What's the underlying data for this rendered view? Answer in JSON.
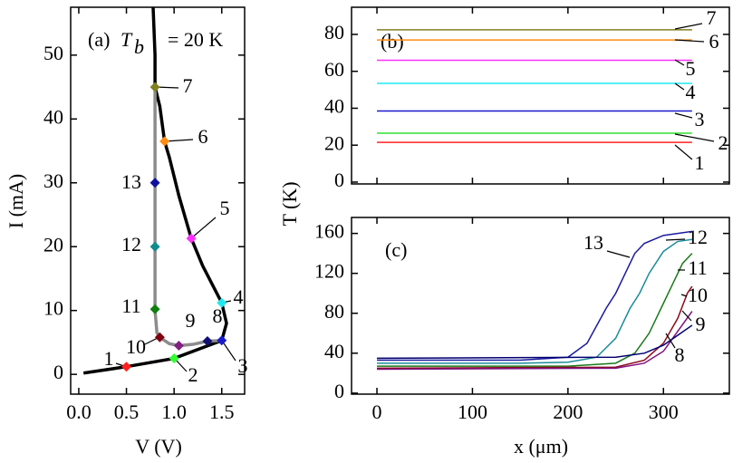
{
  "chart_data": [
    {
      "type": "line",
      "panel_label": "(a)",
      "annotation": {
        "symbol": "T",
        "subscript": "b",
        "text": "= 20 K"
      },
      "xlabel": "V (V)",
      "ylabel": "I (mA)",
      "xlim": [
        -0.085,
        1.74
      ],
      "ylim": [
        -3.1,
        57.5
      ],
      "xticks": [
        {
          "value": 0,
          "label": "0.0"
        },
        0.5,
        {
          "value": 1,
          "label": "1.0"
        },
        1.5
      ],
      "yticks": [
        0,
        10,
        20,
        30,
        40,
        50
      ],
      "series": [
        {
          "color": "#000000",
          "x": [
            0.05,
            0.5,
            1.0,
            1.5,
            1.55,
            1.5,
            1.3,
            1.18,
            1.05,
            0.95,
            0.9,
            0.85,
            0.8,
            0.8,
            0.78
          ],
          "values": [
            0.2,
            1.2,
            2.5,
            5.3,
            8,
            11.2,
            17,
            21.3,
            28,
            34,
            36.5,
            42,
            45,
            50,
            57.5
          ]
        },
        {
          "color": "#8c8c8c",
          "x": [
            0.8,
            0.8,
            0.8,
            0.82,
            0.85,
            0.95,
            1.05,
            1.2,
            1.35,
            1.5
          ],
          "values": [
            45,
            20,
            10,
            6.5,
            5.8,
            4.8,
            4.5,
            4.7,
            5.2,
            5.3
          ]
        }
      ],
      "points": {
        "labels": [
          "1",
          "2",
          "3",
          "4",
          "5",
          "6",
          "7",
          "8",
          "9",
          "10",
          "11",
          "12",
          "13"
        ],
        "x": [
          0.5,
          1.0,
          1.5,
          1.5,
          1.18,
          0.9,
          0.8,
          1.35,
          1.05,
          0.85,
          0.8,
          0.8,
          0.8
        ],
        "values": [
          1.2,
          2.5,
          5.3,
          11.2,
          21.3,
          36.5,
          45,
          5.2,
          4.5,
          5.8,
          10.2,
          20,
          30
        ],
        "colors": [
          "#ff2020",
          "#30ff30",
          "#1a1acc",
          "#20e8f0",
          "#ff30ff",
          "#ff8c10",
          "#808020",
          "#101070",
          "#802080",
          "#800010",
          "#108010",
          "#108c8c",
          "#1010a0"
        ]
      }
    },
    {
      "type": "line",
      "panel_label": "(b)",
      "ylabel": "T (K)",
      "xlim": [
        -26.6,
        369
      ],
      "ylim": [
        -1,
        94.7
      ],
      "xticks": [
        0,
        100,
        200,
        300
      ],
      "xticklabels": false,
      "yticks": [
        0,
        20,
        40,
        60,
        80
      ],
      "series": [
        {
          "name": "1",
          "color": "#ff2020",
          "x": [
            0,
            330
          ],
          "values": [
            21.5,
            21.5
          ]
        },
        {
          "name": "2",
          "color": "#30e030",
          "x": [
            0,
            330
          ],
          "values": [
            26.5,
            26.5
          ]
        },
        {
          "name": "3",
          "color": "#1a1acc",
          "x": [
            0,
            330
          ],
          "values": [
            38.5,
            38.5
          ]
        },
        {
          "name": "4",
          "color": "#20e8f0",
          "x": [
            0,
            330
          ],
          "values": [
            53.5,
            53.5
          ]
        },
        {
          "name": "5",
          "color": "#ff30ff",
          "x": [
            0,
            330
          ],
          "values": [
            66,
            66
          ]
        },
        {
          "name": "6",
          "color": "#ff8c10",
          "x": [
            0,
            330
          ],
          "values": [
            77,
            77
          ]
        },
        {
          "name": "7",
          "color": "#808020",
          "x": [
            0,
            330
          ],
          "values": [
            82.5,
            82.5
          ]
        }
      ]
    },
    {
      "type": "line",
      "panel_label": "(c)",
      "xlabel": "x (μm)",
      "xlim": [
        -26.6,
        369
      ],
      "ylim": [
        -1,
        176
      ],
      "xticks": [
        0,
        100,
        200,
        300
      ],
      "yticks": [
        0,
        40,
        80,
        120,
        160
      ],
      "series": [
        {
          "name": "13",
          "color": "#1a1aa0",
          "x": [
            0,
            100,
            150,
            200,
            220,
            240,
            250,
            260,
            270,
            280,
            300,
            330
          ],
          "values": [
            33,
            33,
            33,
            36,
            50,
            85,
            100,
            120,
            140,
            150,
            158,
            162
          ]
        },
        {
          "name": "12",
          "color": "#1a8c9c",
          "x": [
            0,
            150,
            200,
            230,
            250,
            265,
            275,
            285,
            300,
            315,
            330
          ],
          "values": [
            30,
            30,
            31,
            36,
            55,
            85,
            100,
            120,
            142,
            152,
            154
          ]
        },
        {
          "name": "11",
          "color": "#1a7a1a",
          "x": [
            0,
            200,
            250,
            270,
            285,
            300,
            310,
            320,
            330
          ],
          "values": [
            27,
            27,
            30,
            40,
            60,
            90,
            110,
            130,
            140
          ]
        },
        {
          "name": "10",
          "color": "#8b0a1a",
          "x": [
            0,
            250,
            280,
            300,
            315,
            325,
            330
          ],
          "values": [
            25,
            26,
            33,
            50,
            75,
            100,
            107
          ]
        },
        {
          "name": "9",
          "color": "#801080",
          "x": [
            0,
            250,
            280,
            300,
            315,
            330
          ],
          "values": [
            24,
            25,
            30,
            42,
            62,
            82
          ]
        },
        {
          "name": "8",
          "color": "#000070",
          "x": [
            0,
            250,
            280,
            300,
            315,
            330
          ],
          "values": [
            35,
            36,
            40,
            48,
            58,
            68
          ]
        }
      ]
    }
  ]
}
